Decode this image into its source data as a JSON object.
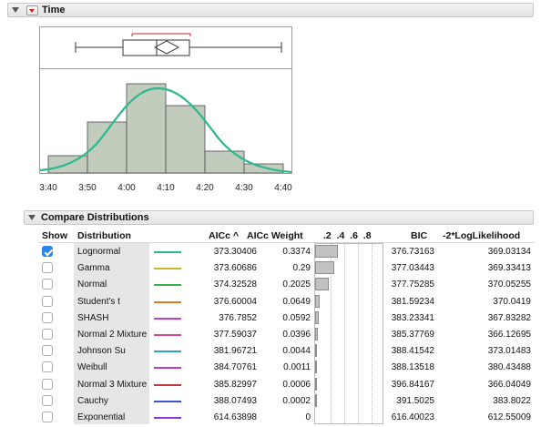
{
  "time_section": {
    "title": "Time",
    "axis_ticks": [
      "3:40",
      "3:50",
      "4:00",
      "4:10",
      "4:20",
      "4:30",
      "4:40"
    ]
  },
  "compare_section": {
    "title": "Compare Distributions",
    "columns": {
      "show": "Show",
      "distribution": "Distribution",
      "aicc": "AICc",
      "aicc_sort_glyph": "^",
      "aicc_weight": "AICc Weight",
      "weight_axis": ".2  .4  .6  .8",
      "bic": "BIC",
      "loglik": "-2*LogLikelihood"
    },
    "rows": [
      {
        "show": true,
        "name": "Lognormal",
        "color": "#2ab98c",
        "aicc": "373.30406",
        "weight": "0.3374",
        "w": 0.3374,
        "bic": "376.73163",
        "loglik": "369.03134"
      },
      {
        "show": false,
        "name": "Gamma",
        "color": "#c8b52a",
        "aicc": "373.60686",
        "weight": "0.29",
        "w": 0.29,
        "bic": "377.03443",
        "loglik": "369.33413"
      },
      {
        "show": false,
        "name": "Normal",
        "color": "#3cb04a",
        "aicc": "374.32528",
        "weight": "0.2025",
        "w": 0.2025,
        "bic": "377.75285",
        "loglik": "370.05255"
      },
      {
        "show": false,
        "name": "Student's t",
        "color": "#e07a2a",
        "aicc": "376.60004",
        "weight": "0.0649",
        "w": 0.0649,
        "bic": "381.59234",
        "loglik": "370.0419"
      },
      {
        "show": false,
        "name": "SHASH",
        "color": "#c43ed4",
        "aicc": "376.7852",
        "weight": "0.0592",
        "w": 0.0592,
        "bic": "383.23341",
        "loglik": "367.83282"
      },
      {
        "show": false,
        "name": "Normal 2 Mixture",
        "color": "#d0479a",
        "aicc": "377.59037",
        "weight": "0.0396",
        "w": 0.0396,
        "bic": "385.37769",
        "loglik": "366.12695"
      },
      {
        "show": false,
        "name": "Johnson Su",
        "color": "#2aa7b5",
        "aicc": "381.96721",
        "weight": "0.0044",
        "w": 0.0044,
        "bic": "388.41542",
        "loglik": "373.01483"
      },
      {
        "show": false,
        "name": "Weibull",
        "color": "#b43cc8",
        "aicc": "384.70761",
        "weight": "0.0011",
        "w": 0.0011,
        "bic": "388.13518",
        "loglik": "380.43488"
      },
      {
        "show": false,
        "name": "Normal 3 Mixture",
        "color": "#c03a3a",
        "aicc": "385.82997",
        "weight": "0.0006",
        "w": 0.0006,
        "bic": "396.84167",
        "loglik": "366.04049"
      },
      {
        "show": false,
        "name": "Cauchy",
        "color": "#3a55d0",
        "aicc": "388.07493",
        "weight": "0.0002",
        "w": 0.0002,
        "bic": "391.5025",
        "loglik": "383.8022"
      },
      {
        "show": false,
        "name": "Exponential",
        "color": "#8a3ad6",
        "aicc": "614.63898",
        "weight": "0",
        "w": 0,
        "bic": "616.40023",
        "loglik": "612.55009"
      }
    ]
  },
  "colors": {
    "histogram_fill": "#c2ccbd",
    "curve": "#2ab98c",
    "mean_diamond": "#444444",
    "shortest_half": "#d2232a"
  }
}
